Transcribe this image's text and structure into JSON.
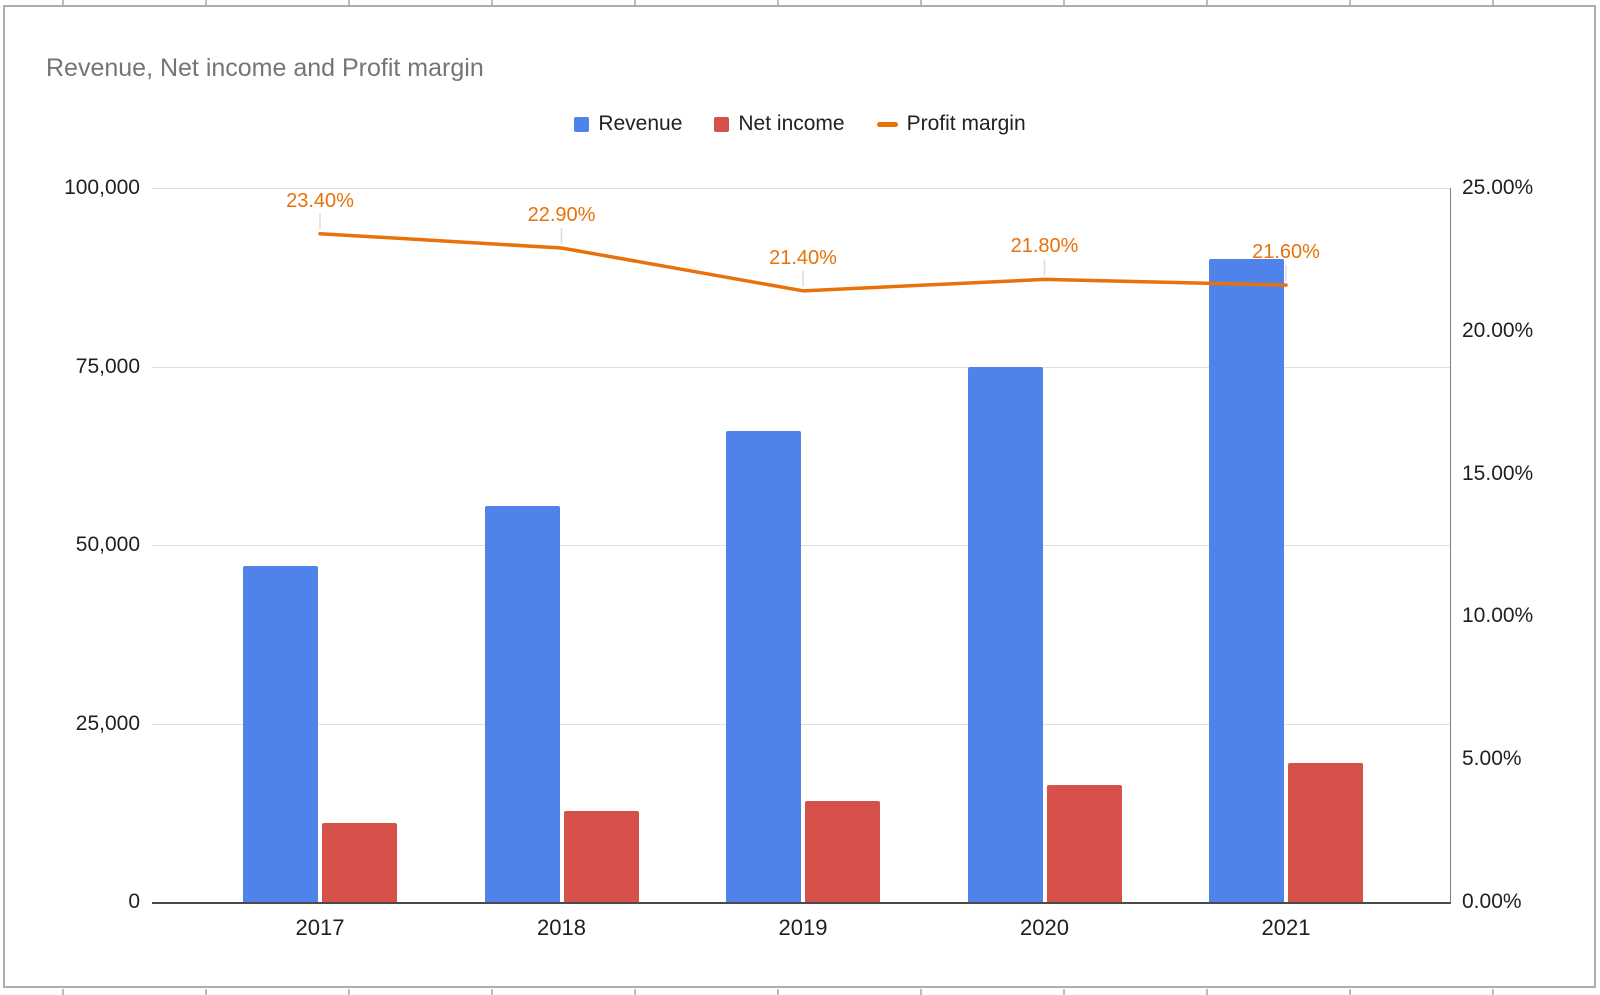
{
  "chart": {
    "title": "Revenue, Net income and Profit margin",
    "legend": [
      {
        "label": "Revenue",
        "color": "#4f83ea",
        "swatch": "square"
      },
      {
        "label": "Net income",
        "color": "#d5514a",
        "swatch": "square"
      },
      {
        "label": "Profit margin",
        "color": "#e8710a",
        "swatch": "line"
      }
    ]
  },
  "chart_data": {
    "type": "combo bar + line",
    "title": "Revenue, Net income and Profit margin",
    "categories": [
      "2017",
      "2018",
      "2019",
      "2020",
      "2021"
    ],
    "series": [
      {
        "name": "Revenue",
        "type": "bar",
        "axis": "left",
        "color": "#4f83ea",
        "values": [
          47000,
          55500,
          66000,
          75000,
          90000
        ]
      },
      {
        "name": "Net income",
        "type": "bar",
        "axis": "left",
        "color": "#d5514a",
        "values": [
          11000,
          12700,
          14100,
          16350,
          19440
        ]
      },
      {
        "name": "Profit margin",
        "type": "line",
        "axis": "right",
        "color": "#e8710a",
        "values": [
          23.4,
          22.9,
          21.4,
          21.8,
          21.6
        ],
        "point_labels": [
          "23.40%",
          "22.90%",
          "21.40%",
          "21.80%",
          "21.60%"
        ]
      }
    ],
    "left_axis": {
      "min": 0,
      "max": 100000,
      "ticks_top_to_bottom": [
        "100,000",
        "75,000",
        "50,000",
        "25,000",
        "0"
      ]
    },
    "right_axis": {
      "min": 0,
      "max": 25,
      "ticks_top_to_bottom": [
        "25.00%",
        "20.00%",
        "15.00%",
        "10.00%",
        "5.00%",
        "0.00%"
      ]
    },
    "grid": "horizontal only",
    "legend_position": "top center",
    "colors": {
      "title_text": "#757575",
      "axis_text": "#1f1f1f",
      "gridline": "#e0e0e0",
      "baseline": "#4a4a4a",
      "data_label": "#e8710a"
    }
  }
}
